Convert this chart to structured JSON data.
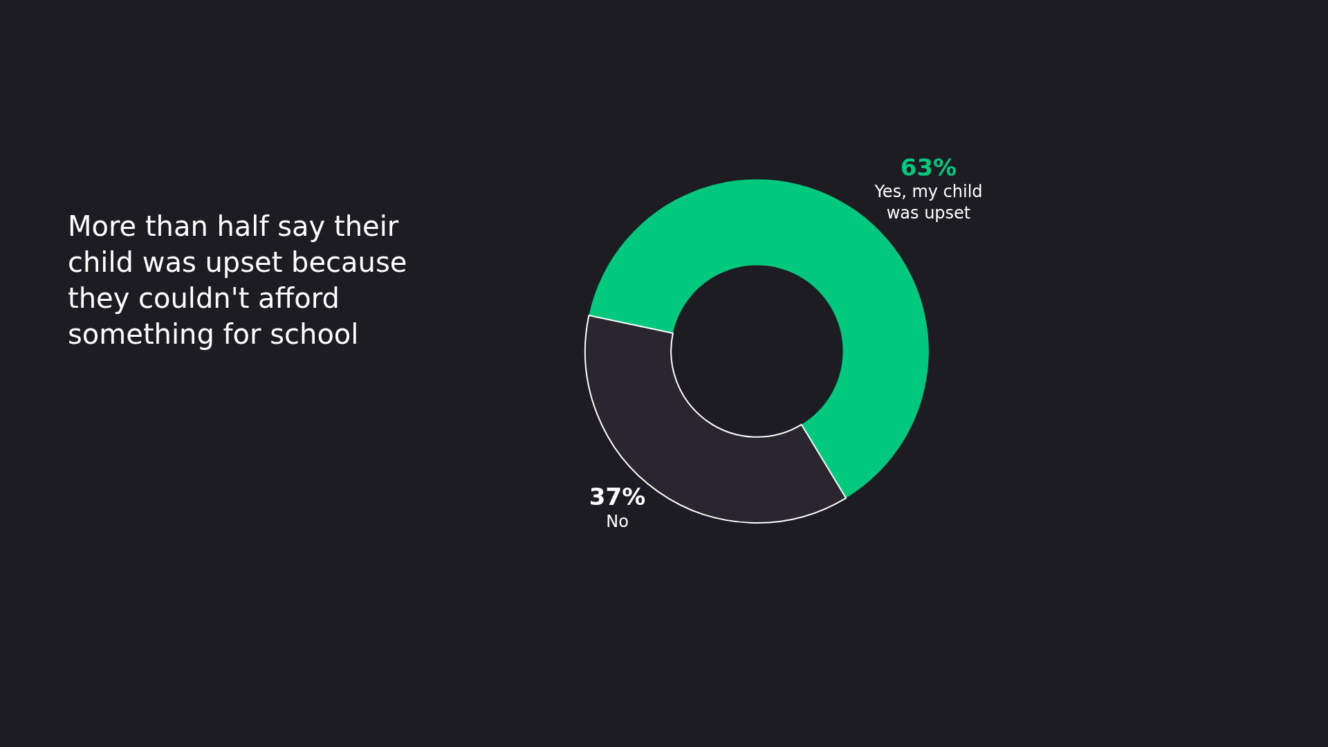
{
  "chart_data": {
    "type": "donut",
    "title": "More than half say their child was upset because they couldn't afford something for school",
    "categories": [
      "Yes, my child was upset",
      "No"
    ],
    "values": [
      63,
      37
    ],
    "colors": [
      "#00c97d",
      "#2a2630"
    ],
    "value_labels": [
      "63%",
      "37%"
    ],
    "legend": false
  }
}
